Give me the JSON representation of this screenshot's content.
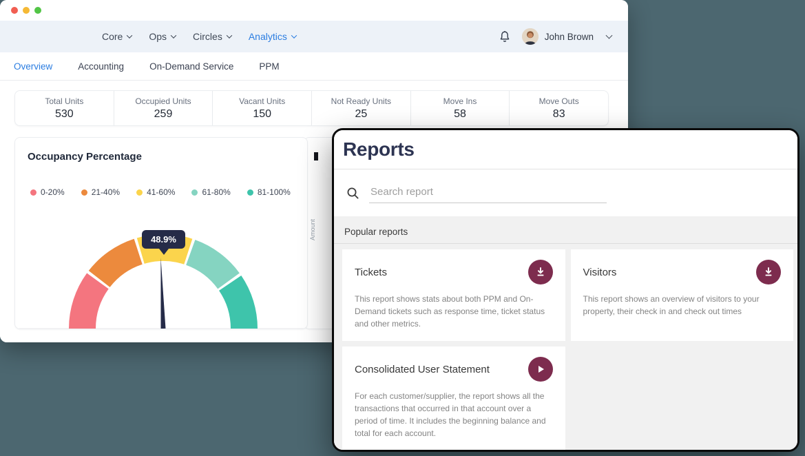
{
  "window": {
    "nav": {
      "items": [
        {
          "label": "Core",
          "active": false
        },
        {
          "label": "Ops",
          "active": false
        },
        {
          "label": "Circles",
          "active": false
        },
        {
          "label": "Analytics",
          "active": true
        }
      ],
      "user": {
        "name": "John Brown"
      }
    },
    "tabs": [
      {
        "label": "Overview",
        "active": true
      },
      {
        "label": "Accounting",
        "active": false
      },
      {
        "label": "On-Demand Service",
        "active": false
      },
      {
        "label": "PPM",
        "active": false
      }
    ],
    "stats": [
      {
        "label": "Total Units",
        "value": "530"
      },
      {
        "label": "Occupied Units",
        "value": "259"
      },
      {
        "label": "Vacant Units",
        "value": "150"
      },
      {
        "label": "Not Ready Units",
        "value": "25"
      },
      {
        "label": "Move Ins",
        "value": "58"
      },
      {
        "label": "Move Outs",
        "value": "83"
      }
    ],
    "occupancy_card": {
      "title": "Occupancy Percentage"
    },
    "hidden_card": {
      "y_axis_label": "Amount"
    }
  },
  "chart_data": {
    "type": "gauge",
    "title": "Occupancy Percentage",
    "value": 48.9,
    "unit": "%",
    "tooltip": "48.9%",
    "min": 0,
    "max": 100,
    "legend_position": "top",
    "needle_color": "#252b48",
    "segments": [
      {
        "label": "0-20%",
        "from": 0,
        "to": 20,
        "color": "#f4757f"
      },
      {
        "label": "21-40%",
        "from": 21,
        "to": 40,
        "color": "#ec8a3d"
      },
      {
        "label": "41-60%",
        "from": 41,
        "to": 60,
        "color": "#fbd44c"
      },
      {
        "label": "61-80%",
        "from": 61,
        "to": 80,
        "color": "#85d4c1"
      },
      {
        "label": "81-100%",
        "from": 81,
        "to": 100,
        "color": "#3ec4ab"
      }
    ]
  },
  "modal": {
    "title": "Reports",
    "search": {
      "placeholder": "Search report"
    },
    "section_title": "Popular reports",
    "accent_color": "#7d2c4e",
    "reports": [
      {
        "title": "Tickets",
        "action": "download",
        "description": "This report shows stats about both PPM and On-Demand tickets such as response time, ticket status and other metrics."
      },
      {
        "title": "Visitors",
        "action": "download",
        "description": "This report shows an overview of visitors to your property, their check in and check out times"
      },
      {
        "title": "Consolidated User Statement",
        "action": "play",
        "description": "For each customer/supplier, the report shows all the transactions that occurred in that account over a period of time. It includes the beginning balance and total for each account."
      }
    ]
  }
}
